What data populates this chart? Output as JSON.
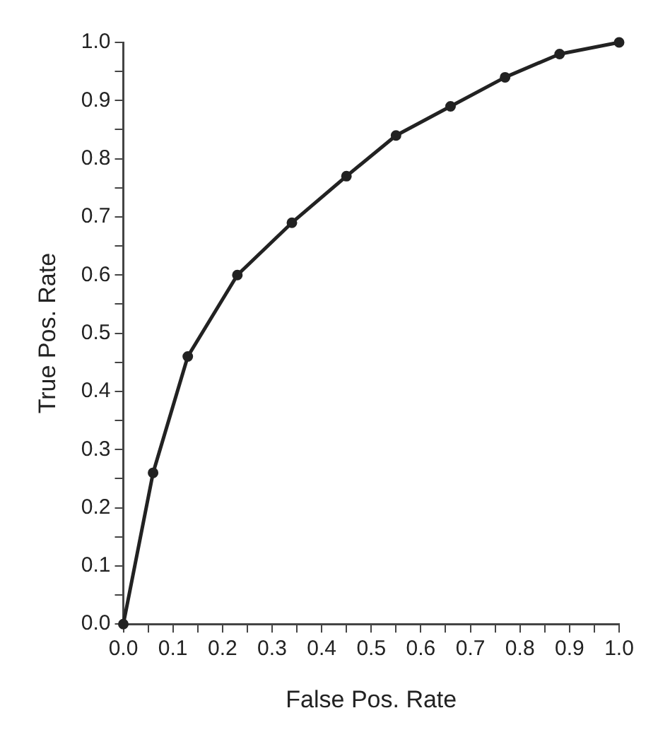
{
  "chart_data": {
    "type": "line",
    "xlabel": "False Pos. Rate",
    "ylabel": "True Pos. Rate",
    "x": [
      0,
      0.06,
      0.13,
      0.23,
      0.34,
      0.45,
      0.55,
      0.66,
      0.77,
      0.88,
      1.0
    ],
    "series": [
      {
        "color": "#222222",
        "values": [
          0,
          0.26,
          0.46,
          0.6,
          0.69,
          0.77,
          0.84,
          0.89,
          0.94,
          0.98,
          1.0
        ]
      }
    ],
    "xlim": [
      0,
      1
    ],
    "ylim": [
      0,
      1
    ],
    "xticks": [
      {
        "value": 0,
        "label": "0.0"
      },
      {
        "value": 0.05,
        "label": null
      },
      {
        "value": 0.1,
        "label": "0.1"
      },
      {
        "value": 0.15,
        "label": null
      },
      {
        "value": 0.2,
        "label": "0.2"
      },
      {
        "value": 0.25,
        "label": null
      },
      {
        "value": 0.3,
        "label": "0.3"
      },
      {
        "value": 0.35,
        "label": null
      },
      {
        "value": 0.4,
        "label": "0.4"
      },
      {
        "value": 0.45,
        "label": null
      },
      {
        "value": 0.5,
        "label": "0.5"
      },
      {
        "value": 0.55,
        "label": null
      },
      {
        "value": 0.6,
        "label": "0.6"
      },
      {
        "value": 0.65,
        "label": null
      },
      {
        "value": 0.7,
        "label": "0.7"
      },
      {
        "value": 0.75,
        "label": null
      },
      {
        "value": 0.8,
        "label": "0.8"
      },
      {
        "value": 0.85,
        "label": null
      },
      {
        "value": 0.9,
        "label": "0.9"
      },
      {
        "value": 0.95,
        "label": null
      },
      {
        "value": 1,
        "label": "1.0"
      }
    ],
    "yticks": [
      {
        "value": 0,
        "label": "0.0"
      },
      {
        "value": 0.05,
        "label": null
      },
      {
        "value": 0.1,
        "label": "0.1"
      },
      {
        "value": 0.15,
        "label": null
      },
      {
        "value": 0.2,
        "label": "0.2"
      },
      {
        "value": 0.25,
        "label": null
      },
      {
        "value": 0.3,
        "label": "0.3"
      },
      {
        "value": 0.35,
        "label": null
      },
      {
        "value": 0.4,
        "label": "0.4"
      },
      {
        "value": 0.45,
        "label": null
      },
      {
        "value": 0.5,
        "label": "0.5"
      },
      {
        "value": 0.55,
        "label": null
      },
      {
        "value": 0.6,
        "label": "0.6"
      },
      {
        "value": 0.65,
        "label": null
      },
      {
        "value": 0.7,
        "label": "0.7"
      },
      {
        "value": 0.75,
        "label": null
      },
      {
        "value": 0.8,
        "label": "0.8"
      },
      {
        "value": 0.85,
        "label": null
      },
      {
        "value": 0.9,
        "label": "0.9"
      },
      {
        "value": 0.95,
        "label": null
      },
      {
        "value": 1,
        "label": "1.0"
      }
    ],
    "grid": false,
    "legend": false,
    "marker": "circle",
    "line_style": "solid"
  }
}
